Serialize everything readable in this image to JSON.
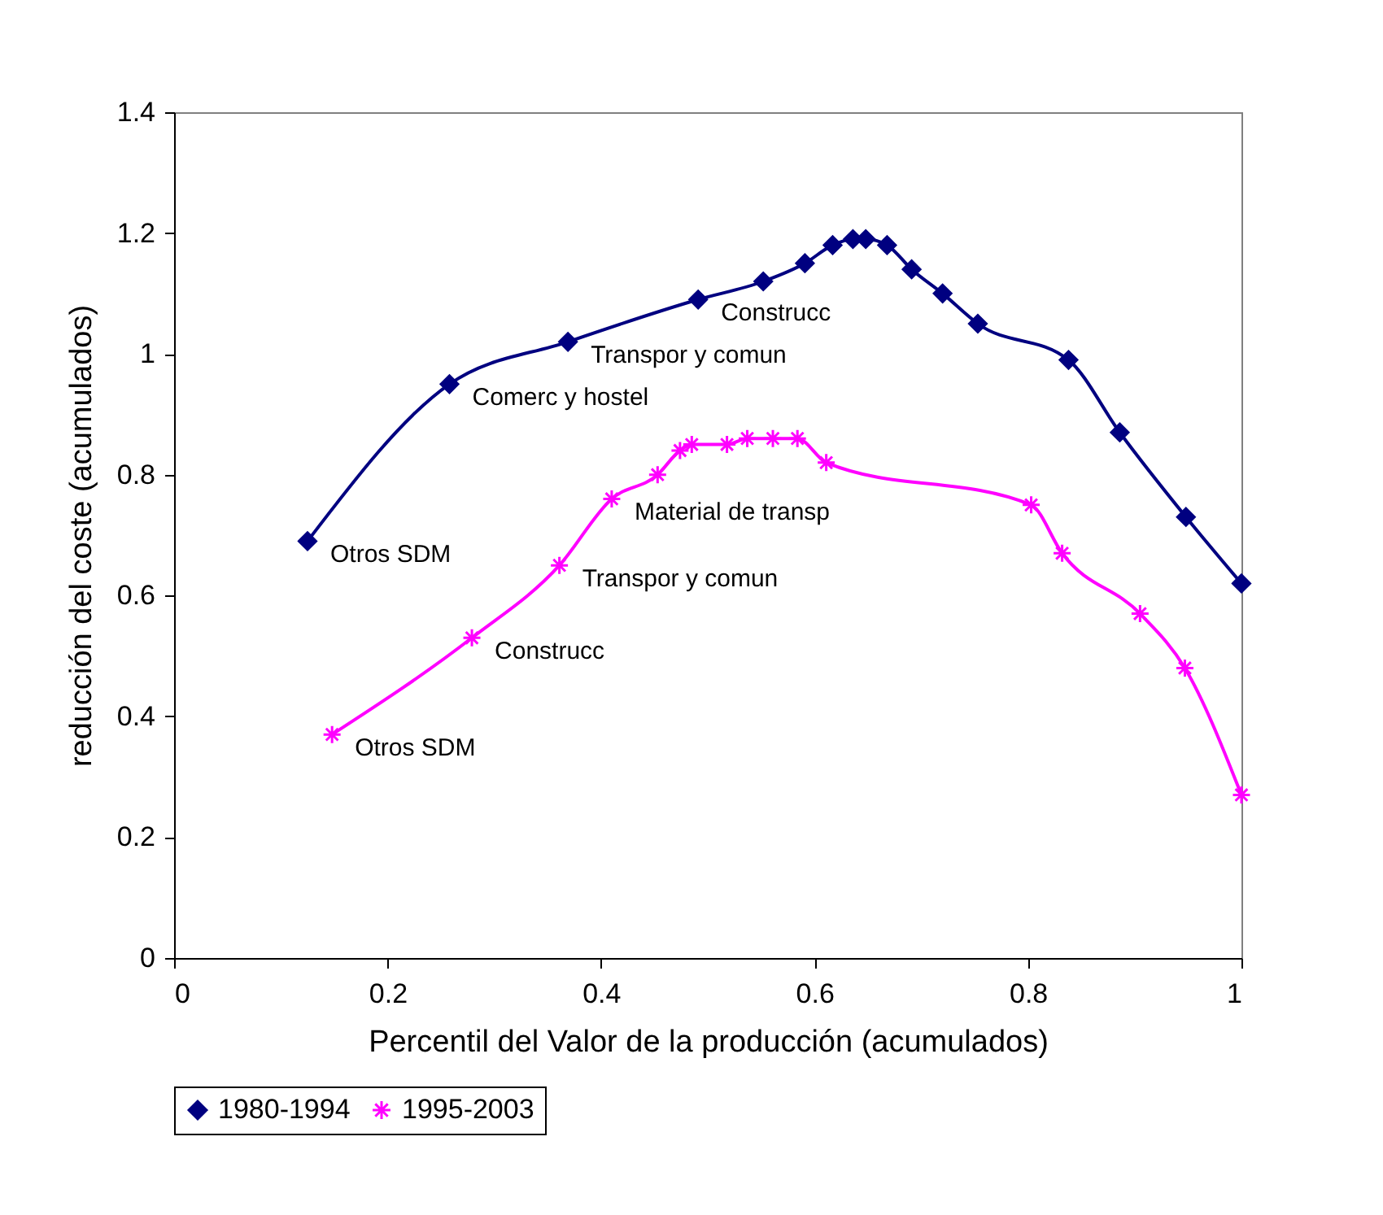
{
  "chart_data": {
    "type": "line",
    "xlabel": "Percentil del Valor de la producción (acumulados)",
    "ylabel": "reducción del coste (acumulados)",
    "xlim": [
      0,
      1
    ],
    "xticks": [
      0,
      0.2,
      0.4,
      0.6,
      0.8,
      1
    ],
    "ylim": [
      0,
      1.4
    ],
    "yticks": [
      0,
      0.2,
      0.4,
      0.6,
      0.8,
      1,
      1.2,
      1.4
    ],
    "grid": false,
    "legend": "bottom",
    "series": [
      {
        "name": "1980-1994",
        "color": "#000080",
        "marker": "diamond",
        "x": [
          0.125,
          0.258,
          0.369,
          0.491,
          0.552,
          0.591,
          0.617,
          0.636,
          0.648,
          0.668,
          0.691,
          0.72,
          0.753,
          0.838,
          0.886,
          0.948,
          1.0
        ],
        "values": [
          0.69,
          0.95,
          1.02,
          1.09,
          1.12,
          1.15,
          1.18,
          1.19,
          1.19,
          1.18,
          1.14,
          1.1,
          1.05,
          0.99,
          0.87,
          0.73,
          0.62
        ]
      },
      {
        "name": "1995-2003",
        "color": "#ff00ff",
        "marker": "cross",
        "x": [
          0.148,
          0.279,
          0.361,
          0.41,
          0.453,
          0.474,
          0.485,
          0.518,
          0.537,
          0.561,
          0.584,
          0.611,
          0.803,
          0.832,
          0.905,
          0.947,
          1.0
        ],
        "values": [
          0.37,
          0.53,
          0.65,
          0.76,
          0.8,
          0.84,
          0.85,
          0.85,
          0.86,
          0.86,
          0.86,
          0.82,
          0.75,
          0.67,
          0.57,
          0.48,
          0.27
        ]
      }
    ],
    "annotations": [
      {
        "text": "Otros SDM",
        "x": 0.125,
        "y": 0.69
      },
      {
        "text": "Comerc y hostel",
        "x": 0.258,
        "y": 0.95
      },
      {
        "text": "Transpor y comun",
        "x": 0.369,
        "y": 1.02
      },
      {
        "text": "Construcc",
        "x": 0.491,
        "y": 1.09
      },
      {
        "text": "Otros SDM",
        "x": 0.148,
        "y": 0.37
      },
      {
        "text": "Construcc",
        "x": 0.279,
        "y": 0.53
      },
      {
        "text": "Transpor y comun",
        "x": 0.361,
        "y": 0.65
      },
      {
        "text": "Material de transp",
        "x": 0.41,
        "y": 0.76
      }
    ]
  }
}
